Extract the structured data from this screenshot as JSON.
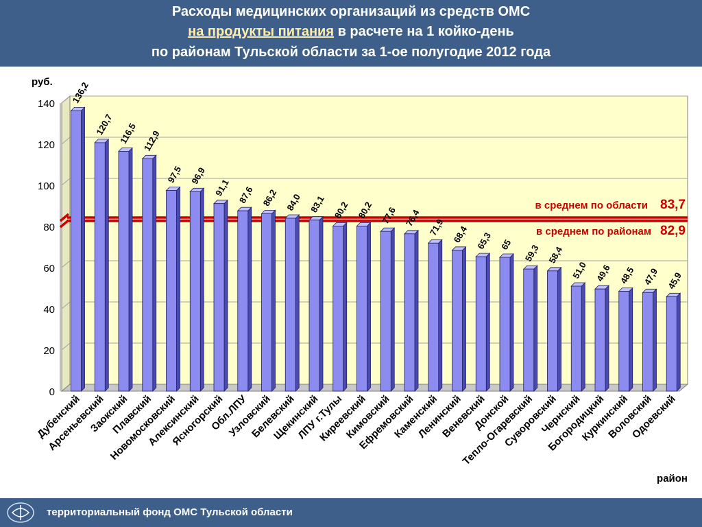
{
  "header": {
    "line1": "Расходы медицинских организаций из средств ОМС",
    "line2_highlight": "на продукты питания",
    "line2_rest": " в расчете на 1 койко-день",
    "line3": "по районам Тульской области за 1-ое полугодие 2012 года"
  },
  "footer": {
    "text": "территориальный фонд ОМС Тульской области",
    "logo_icon": "health-fund-logo-icon"
  },
  "chart_data": {
    "type": "bar",
    "ylabel": "руб.",
    "xlabel": "район",
    "ylim": [
      0,
      140
    ],
    "yticks": [
      0,
      20,
      40,
      60,
      80,
      100,
      120,
      140
    ],
    "grid": true,
    "bar_color": "#8c8cf0",
    "plot_background": "#ffffcc",
    "categories": [
      "Дубенский",
      "Арсеньевский",
      "Заокский",
      "Плавский",
      "Новомосковский",
      "Алексинский",
      "Ясногорский",
      "Обл.ЛПУ",
      "Узловский",
      "Белевский",
      "Щекинский",
      "ЛПУ г.Тулы",
      "Киреевский",
      "Кимовский",
      "Ефремовский",
      "Каменский",
      "Ленинский",
      "Веневский",
      "Донской",
      "Тепло-Огаревский",
      "Суворовский",
      "Чернский",
      "Богородицкий",
      "Куркинский",
      "Воловский",
      "Одоевский"
    ],
    "values": [
      136.2,
      120.7,
      116.5,
      112.9,
      97.5,
      96.9,
      91.1,
      87.6,
      86.2,
      84.0,
      83.1,
      80.2,
      80.2,
      77.6,
      76.4,
      71.9,
      68.4,
      65.3,
      65,
      59.3,
      58.4,
      51.0,
      49.6,
      48.5,
      47.9,
      45.9
    ],
    "value_labels": [
      "136,2",
      "120,7",
      "116,5",
      "112,9",
      "97,5",
      "96,9",
      "91,1",
      "87,6",
      "86,2",
      "84,0",
      "83,1",
      "80,2",
      "80,2",
      "77,6",
      "76,4",
      "71,9",
      "68,4",
      "65,3",
      "65",
      "59,3",
      "58,4",
      "51,0",
      "49,6",
      "48,5",
      "47,9",
      "45,9"
    ],
    "reference_lines": [
      {
        "label": "в среднем по области",
        "value_label": "83,7",
        "value": 83.7,
        "color": "#cc0000"
      },
      {
        "label": "в среднем по районам",
        "value_label": "82,9",
        "value": 82.9,
        "color": "#cc0000"
      }
    ]
  }
}
